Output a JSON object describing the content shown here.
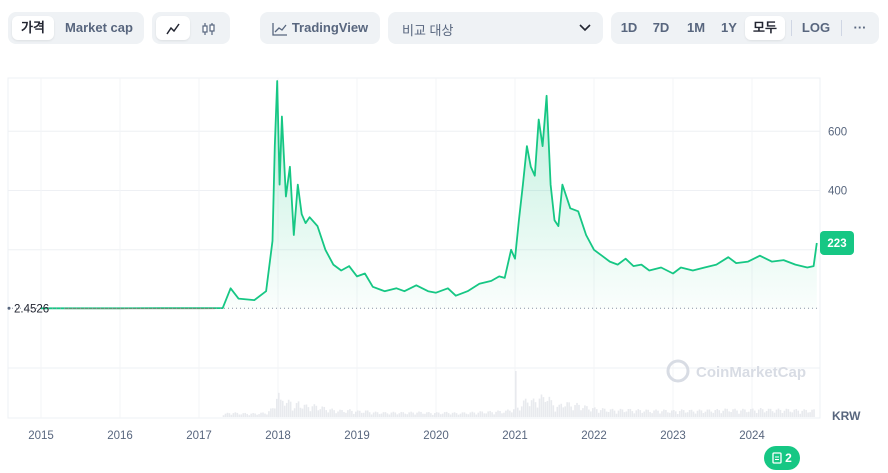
{
  "toolbar": {
    "view_toggle": [
      "가격",
      "Market cap"
    ],
    "view_selected": "가격",
    "tradingview_label": "TradingView",
    "compare_placeholder": "비교 대상",
    "ranges": [
      "1D",
      "7D",
      "1M",
      "1Y",
      "모두",
      "LOG"
    ],
    "range_selected": "모두",
    "more_label": "···"
  },
  "colors": {
    "accent": "#16c784",
    "down": "#ea3943",
    "muted": "#58667e",
    "toolbar_bg": "#eff2f5"
  },
  "watermark": "CoinMarketCap",
  "notes_badge": "2",
  "chart_data": {
    "type": "area",
    "currency": "KRW",
    "current_price_label": "223",
    "reference_price_label": "2.4526",
    "y_ticks": [
      400,
      600
    ],
    "ylim": [
      0,
      780
    ],
    "x_ticks": [
      "2015",
      "2016",
      "2017",
      "2018",
      "2019",
      "2020",
      "2021",
      "2022",
      "2023",
      "2024"
    ],
    "grid": true,
    "series": [
      {
        "x": [
          2015.0,
          2015.5,
          2016.0,
          2016.5,
          2017.0,
          2017.3,
          2017.4,
          2017.5,
          2017.7,
          2017.85,
          2017.93,
          2017.96,
          2017.99,
          2018.02,
          2018.05,
          2018.1,
          2018.15,
          2018.2,
          2018.25,
          2018.3,
          2018.35,
          2018.4,
          2018.5,
          2018.6,
          2018.7,
          2018.8,
          2018.9,
          2019.0,
          2019.1,
          2019.2,
          2019.35,
          2019.5,
          2019.6,
          2019.75,
          2019.9,
          2020.0,
          2020.15,
          2020.25,
          2020.4,
          2020.55,
          2020.7,
          2020.8,
          2020.87,
          2020.95,
          2021.0,
          2021.05,
          2021.1,
          2021.15,
          2021.2,
          2021.25,
          2021.3,
          2021.35,
          2021.4,
          2021.45,
          2021.5,
          2021.55,
          2021.6,
          2021.7,
          2021.8,
          2021.9,
          2022.0,
          2022.1,
          2022.2,
          2022.3,
          2022.4,
          2022.5,
          2022.6,
          2022.7,
          2022.85,
          2023.0,
          2023.1,
          2023.25,
          2023.4,
          2023.55,
          2023.7,
          2023.8,
          2023.95,
          2024.1,
          2024.25,
          2024.4,
          2024.55,
          2024.7,
          2024.78,
          2024.82
        ],
        "y": [
          2.4526,
          2.4,
          2.5,
          2.6,
          2.7,
          3,
          70,
          35,
          30,
          60,
          230,
          550,
          770,
          420,
          650,
          380,
          480,
          250,
          420,
          320,
          290,
          310,
          280,
          200,
          150,
          130,
          145,
          110,
          120,
          75,
          60,
          70,
          60,
          80,
          60,
          55,
          70,
          45,
          60,
          85,
          95,
          110,
          105,
          200,
          170,
          300,
          420,
          550,
          480,
          450,
          640,
          550,
          720,
          420,
          300,
          280,
          420,
          340,
          330,
          250,
          200,
          180,
          160,
          150,
          170,
          145,
          150,
          130,
          140,
          120,
          140,
          130,
          140,
          150,
          175,
          155,
          160,
          180,
          160,
          165,
          150,
          140,
          145,
          223
        ]
      }
    ]
  }
}
